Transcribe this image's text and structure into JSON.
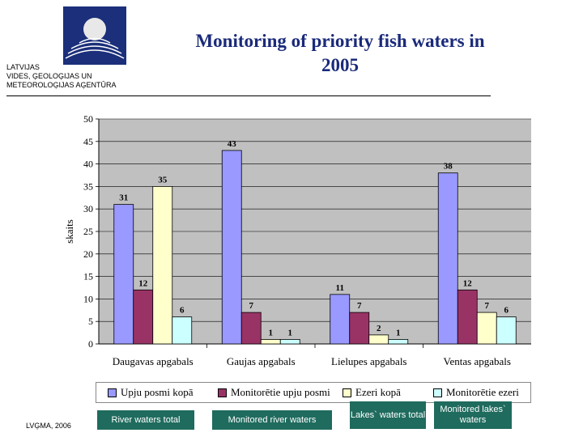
{
  "header": {
    "org_lines": [
      "LATVIJAS",
      "VIDES, ĢEOLOĢIJAS UN",
      "METEOROLOĢIJAS AĢENTŪRA"
    ],
    "title": "Monitoring of priority fish waters in 2005"
  },
  "chart_data": {
    "type": "bar",
    "title": "",
    "ylabel": "skaits",
    "xlabel": "",
    "ylim": [
      0,
      50
    ],
    "yticks": [
      0,
      5,
      10,
      15,
      20,
      25,
      30,
      35,
      40,
      45,
      50
    ],
    "grid": true,
    "legend_position": "bottom",
    "categories": [
      "Daugavas apgabals",
      "Gaujas apgabals",
      "Lielupes apgabals",
      "Ventas apgabals"
    ],
    "series": [
      {
        "name": "Upju posmi kopā",
        "color": "#9999ff",
        "values": [
          31,
          43,
          11,
          38
        ]
      },
      {
        "name": "Monitorētie upju posmi",
        "color": "#993366",
        "values": [
          12,
          7,
          7,
          12
        ]
      },
      {
        "name": "Ezeri kopā",
        "color": "#ffffcc",
        "values": [
          35,
          1,
          2,
          7
        ]
      },
      {
        "name": "Monitorētie ezeri",
        "color": "#ccffff",
        "values": [
          6,
          1,
          1,
          6
        ]
      }
    ],
    "plot_background": "#c0c0c0"
  },
  "translations": [
    "River waters total",
    "Monitored river waters",
    "Lakes` waters total",
    "Monitored lakes` waters"
  ],
  "footer": "LVĢMA, 2006"
}
